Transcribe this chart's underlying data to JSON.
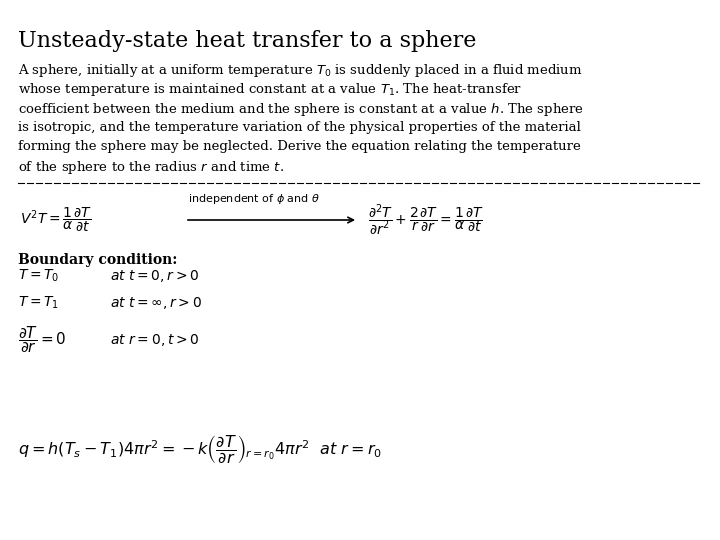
{
  "title": "Unsteady-state heat transfer to a sphere",
  "background_color": "#ffffff",
  "text_color": "#000000",
  "fig_width": 7.2,
  "fig_height": 5.4,
  "dpi": 100,
  "description_lines": [
    "A sphere, initially at a uniform temperature $T_0$ is suddenly placed in a fluid medium",
    "whose temperature is maintained constant at a value $T_1$. The heat-transfer",
    "coefficient between the medium and the sphere is constant at a value $h$. The sphere",
    "is isotropic, and the temperature variation of the physical properties of the material",
    "forming the sphere may be neglected. Derive the equation relating the temperature",
    "of the sphere to the radius $r$ and time $t$."
  ],
  "eq1_left": "$V^2T = \\dfrac{1}{\\alpha}\\dfrac{\\partial T}{\\partial t}$",
  "eq1_label": "independent of $\\phi$ and $\\theta$",
  "eq1_right": "$\\dfrac{\\partial^2 T}{\\partial r^2} + \\dfrac{2}{r}\\dfrac{\\partial T}{\\partial r} = \\dfrac{1}{\\alpha}\\dfrac{\\partial T}{\\partial t}$",
  "boundary_label": "Boundary condition:",
  "bc1_eq": "$T = T_0$",
  "bc1_cond": "$at\\ t=0, r>0$",
  "bc2_eq": "$T = T_1$",
  "bc2_cond": "$at\\ t=\\infty, r>0$",
  "bc3_eq": "$\\dfrac{\\partial T}{\\partial r} = 0$",
  "bc3_cond": "$at\\ r=0, t>0$",
  "final_eq": "$q = h(T_s - T_1)4\\pi r^2 = -k\\left(\\dfrac{\\partial T}{\\partial r}\\right)_{r=r_0} 4\\pi r^2 \\ \\ at\\ r = r_0$",
  "title_fontsize": 16,
  "body_fontsize": 9.5,
  "eq_fontsize": 10,
  "label_fontsize": 8
}
